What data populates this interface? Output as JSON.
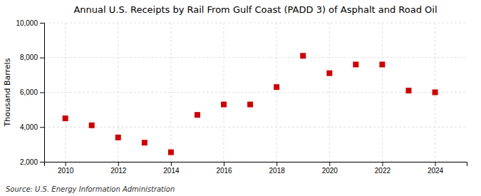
{
  "chart_data": {
    "type": "scatter",
    "title": "Annual U.S. Receipts by Rail From Gulf Coast (PADD 3) of Asphalt and Road Oil",
    "ylabel": "Thousand Barrels",
    "source": "Source: U.S. Energy Information Administration",
    "x": [
      2010,
      2011,
      2012,
      2013,
      2014,
      2015,
      2016,
      2017,
      2018,
      2019,
      2020,
      2021,
      2022,
      2023,
      2024
    ],
    "values": [
      4500,
      4100,
      3400,
      3100,
      2550,
      4700,
      5300,
      5300,
      6300,
      8100,
      7100,
      7600,
      7600,
      6100,
      6000
    ],
    "color": "#cc0000",
    "marker": "square",
    "xlim": [
      2009.2,
      2025.2
    ],
    "xticks": [
      2010,
      2012,
      2014,
      2016,
      2018,
      2020,
      2022,
      2024
    ],
    "ylim": [
      2000,
      10000
    ],
    "yticks": [
      {
        "value": 2000,
        "label": "2,000"
      },
      {
        "value": 4000,
        "label": "4,000"
      },
      {
        "value": 6000,
        "label": "6,000"
      },
      {
        "value": 8000,
        "label": "8,000"
      },
      {
        "value": 10000,
        "label": "10,000"
      }
    ],
    "grid": true
  }
}
